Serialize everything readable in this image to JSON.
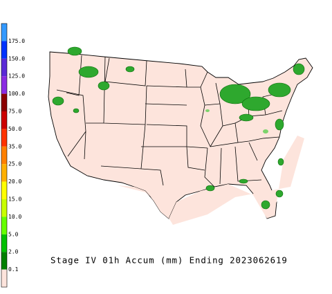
{
  "title": "Stage IV 01h Accum (mm) Ending 2023062619",
  "legend": {
    "labels": [
      "175.0",
      "150.0",
      "125.0",
      "100.0",
      "75.0",
      "50.0",
      "35.0",
      "25.0",
      "20.0",
      "15.0",
      "10.0",
      "5.0",
      "2.0",
      "0.1"
    ],
    "colors": [
      "#3399ff",
      "#0033ff",
      "#5a2ad6",
      "#8a2be2",
      "#8b0000",
      "#cc0000",
      "#ff3300",
      "#ff8000",
      "#ffb000",
      "#ffff00",
      "#c8ff00",
      "#66ff00",
      "#00c000",
      "#008000",
      "#fde4dc"
    ]
  }
}
